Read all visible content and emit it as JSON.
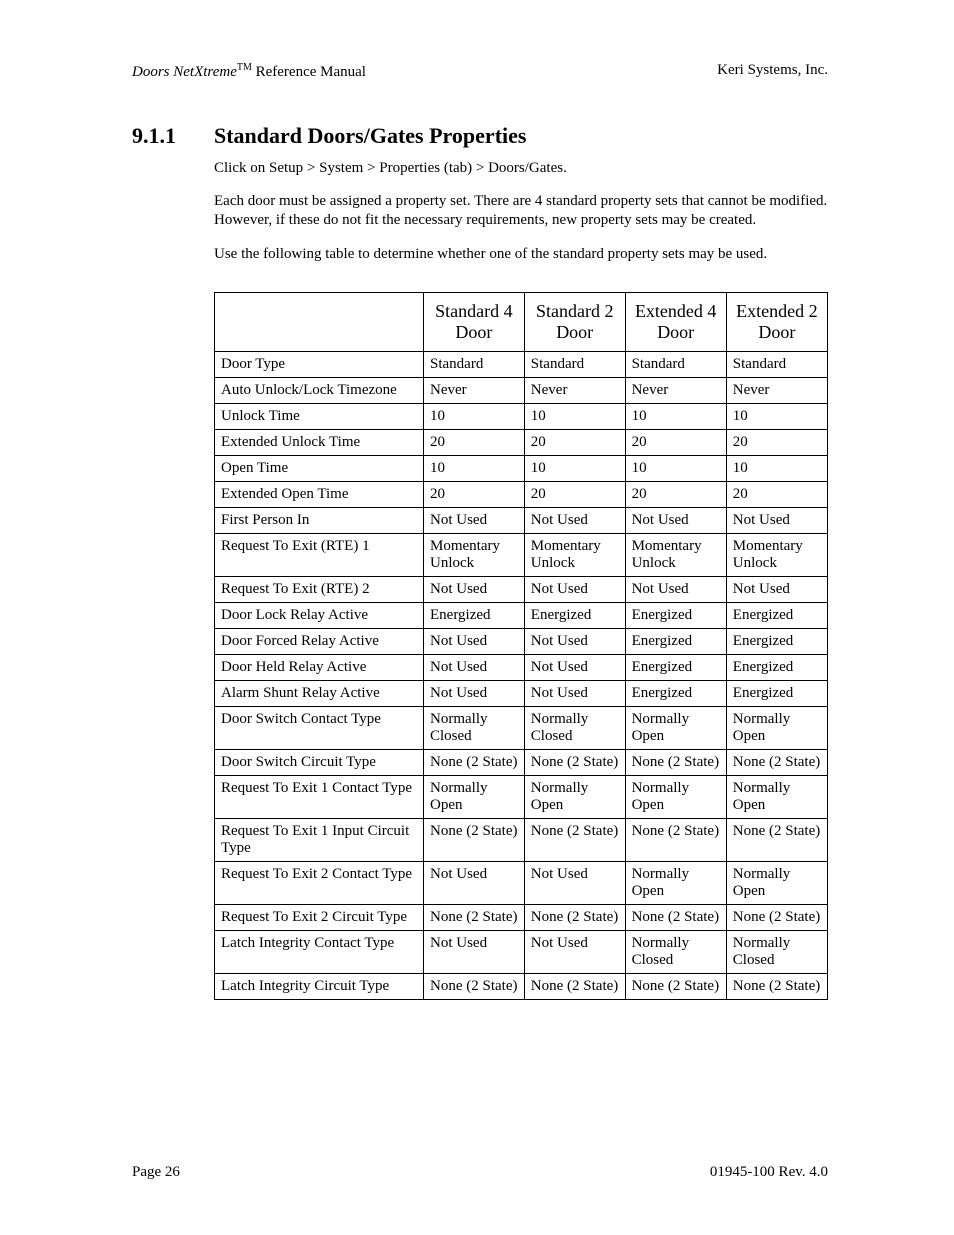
{
  "header": {
    "product_italic": "Doors NetXtreme",
    "tm": "TM",
    "product_rest": " Reference Manual",
    "company": "Keri Systems, Inc."
  },
  "section": {
    "number": "9.1.1",
    "title": "Standard Doors/Gates Properties"
  },
  "paragraphs": {
    "p1": "Click on Setup > System > Properties (tab) > Doors/Gates.",
    "p2": "Each door must be assigned a property set. There are 4 standard property sets that cannot be modified. However, if these do not fit the necessary requirements, new property sets may be created.",
    "p3": "Use the following table to determine whether one of the standard property sets may be used."
  },
  "table": {
    "columns": [
      "",
      "Standard 4 Door",
      "Standard 2 Door",
      "Extended 4 Door",
      "Extended 2 Door"
    ],
    "rows": [
      [
        "Door Type",
        "Standard",
        "Standard",
        "Standard",
        "Standard"
      ],
      [
        "Auto Unlock/Lock Timezone",
        "Never",
        "Never",
        "Never",
        "Never"
      ],
      [
        "Unlock Time",
        "10",
        "10",
        "10",
        "10"
      ],
      [
        "Extended Unlock Time",
        "20",
        "20",
        "20",
        "20"
      ],
      [
        "Open Time",
        "10",
        "10",
        "10",
        "10"
      ],
      [
        "Extended Open Time",
        "20",
        "20",
        "20",
        "20"
      ],
      [
        "First Person In",
        "Not Used",
        "Not Used",
        "Not Used",
        "Not Used"
      ],
      [
        "Request To Exit (RTE) 1",
        "Momentary Unlock",
        "Momentary Unlock",
        "Momentary Unlock",
        "Momentary Unlock"
      ],
      [
        "Request To Exit (RTE) 2",
        "Not Used",
        "Not Used",
        "Not Used",
        "Not Used"
      ],
      [
        "Door Lock Relay Active",
        "Energized",
        "Energized",
        "Energized",
        "Energized"
      ],
      [
        "Door Forced Relay Active",
        "Not Used",
        "Not Used",
        "Energized",
        "Energized"
      ],
      [
        "Door Held Relay Active",
        "Not Used",
        "Not Used",
        "Energized",
        "Energized"
      ],
      [
        "Alarm Shunt Relay Active",
        "Not Used",
        "Not Used",
        "Energized",
        "Energized"
      ],
      [
        "Door Switch Contact Type",
        "Normally Closed",
        "Normally Closed",
        "Normally Open",
        "Normally Open"
      ],
      [
        "Door Switch Circuit Type",
        "None (2 State)",
        "None (2 State)",
        "None (2 State)",
        "None (2 State)"
      ],
      [
        "Request To Exit 1 Contact Type",
        "Normally Open",
        "Normally Open",
        "Normally Open",
        "Normally Open"
      ],
      [
        "Request To Exit 1 Input Circuit Type",
        "None (2 State)",
        "None (2 State)",
        "None (2 State)",
        "None (2 State)"
      ],
      [
        "Request To Exit 2 Contact Type",
        "Not Used",
        "Not Used",
        "Normally Open",
        "Normally Open"
      ],
      [
        "Request To Exit 2 Circuit Type",
        "None (2 State)",
        "None (2 State)",
        "None (2 State)",
        "None (2 State)"
      ],
      [
        "Latch Integrity Contact Type",
        "Not Used",
        "Not Used",
        "Normally Closed",
        "Normally Closed"
      ],
      [
        "Latch Integrity Circuit Type",
        "None (2 State)",
        "None (2 State)",
        "None (2 State)",
        "None (2 State)"
      ]
    ]
  },
  "footer": {
    "page": "Page 26",
    "docrev": "01945-100  Rev. 4.0"
  }
}
